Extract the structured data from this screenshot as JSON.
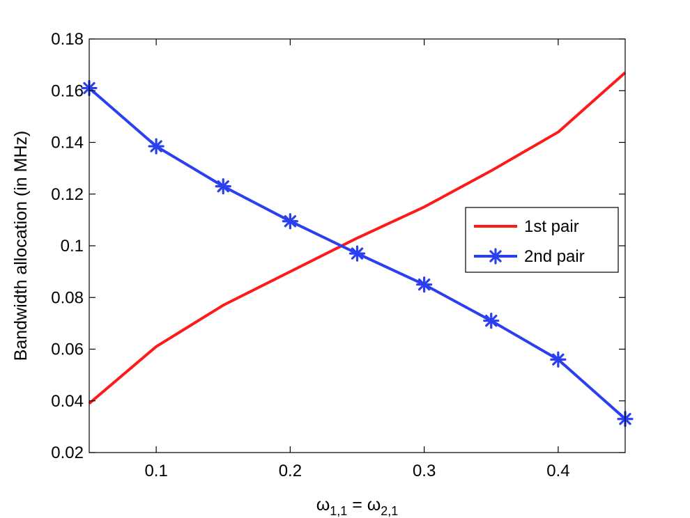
{
  "chart_data": {
    "type": "line",
    "title": "",
    "xlabel": "ω1,1 = ω2,1",
    "xlabel_parts": {
      "sym_a": "ω",
      "sub_a": "1,1",
      "eq": " = ",
      "sym_b": "ω",
      "sub_b": "2,1"
    },
    "ylabel": "Bandwidth allocation (in MHz)",
    "xlim": [
      0.05,
      0.45
    ],
    "ylim": [
      0.02,
      0.18
    ],
    "x_ticks": [
      0.1,
      0.2,
      0.3,
      0.4
    ],
    "x_tick_labels": [
      "0.1",
      "0.2",
      "0.3",
      "0.4"
    ],
    "y_ticks": [
      0.02,
      0.04,
      0.06,
      0.08,
      0.1,
      0.12,
      0.14,
      0.16,
      0.18
    ],
    "y_tick_labels": [
      "0.02",
      "0.04",
      "0.06",
      "0.08",
      "0.1",
      "0.12",
      "0.14",
      "0.16",
      "0.18"
    ],
    "grid": false,
    "legend_position": "right",
    "x": [
      0.05,
      0.1,
      0.15,
      0.2,
      0.25,
      0.3,
      0.35,
      0.4,
      0.45
    ],
    "series": [
      {
        "name": "1st pair",
        "color": "#ff1a1a",
        "marker": "none",
        "values": [
          0.039,
          0.061,
          0.077,
          0.09,
          0.103,
          0.115,
          0.129,
          0.144,
          0.167
        ]
      },
      {
        "name": "2nd pair",
        "color": "#2a40f0",
        "marker": "asterisk",
        "values": [
          0.161,
          0.1385,
          0.123,
          0.1095,
          0.097,
          0.085,
          0.071,
          0.056,
          0.033
        ]
      }
    ]
  }
}
